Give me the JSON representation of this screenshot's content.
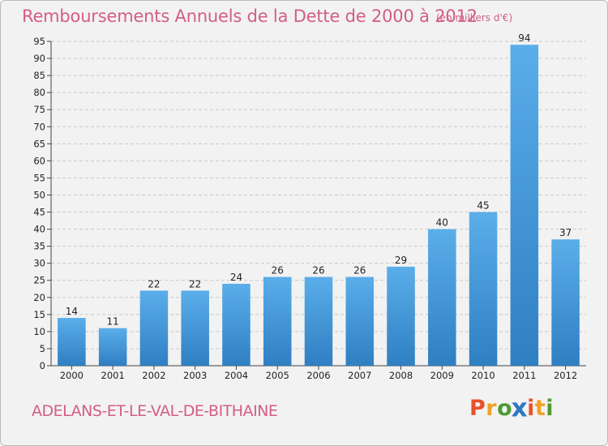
{
  "header": {
    "title": "Remboursements Annuels de la Dette de 2000 à 2012",
    "subtitle": "(en milliers d'€)"
  },
  "footer": {
    "commune": "ADELANS-ET-LE-VAL-DE-BITHAINE",
    "logo": {
      "letters": [
        "P",
        "r",
        "o",
        "x",
        "i",
        "t",
        "i"
      ],
      "colors": [
        "#e8522b",
        "#f0a125",
        "#4d9a32",
        "#2f78c1",
        "#e8522b",
        "#f0a125",
        "#4d9a32"
      ]
    }
  },
  "colors": {
    "title": "#d35d87",
    "bar_top": "#5aaee9",
    "bar_bottom": "#2f7fc3",
    "background": "#f2f2f2",
    "grid": "#c9c9c9"
  },
  "chart_data": {
    "type": "bar",
    "title": "Remboursements Annuels de la Dette de 2000 à 2012",
    "subtitle": "(en milliers d'€)",
    "xlabel": "",
    "ylabel": "",
    "categories": [
      "2000",
      "2001",
      "2002",
      "2003",
      "2004",
      "2005",
      "2006",
      "2007",
      "2008",
      "2009",
      "2010",
      "2011",
      "2012"
    ],
    "values": [
      14,
      11,
      22,
      22,
      24,
      26,
      26,
      26,
      29,
      40,
      45,
      94,
      37
    ],
    "ylim": [
      0,
      95
    ],
    "yticks": [
      0,
      5,
      10,
      15,
      20,
      25,
      30,
      35,
      40,
      45,
      50,
      55,
      60,
      65,
      70,
      75,
      80,
      85,
      90,
      95
    ],
    "grid": "horizontal dashed",
    "legend": "none"
  }
}
